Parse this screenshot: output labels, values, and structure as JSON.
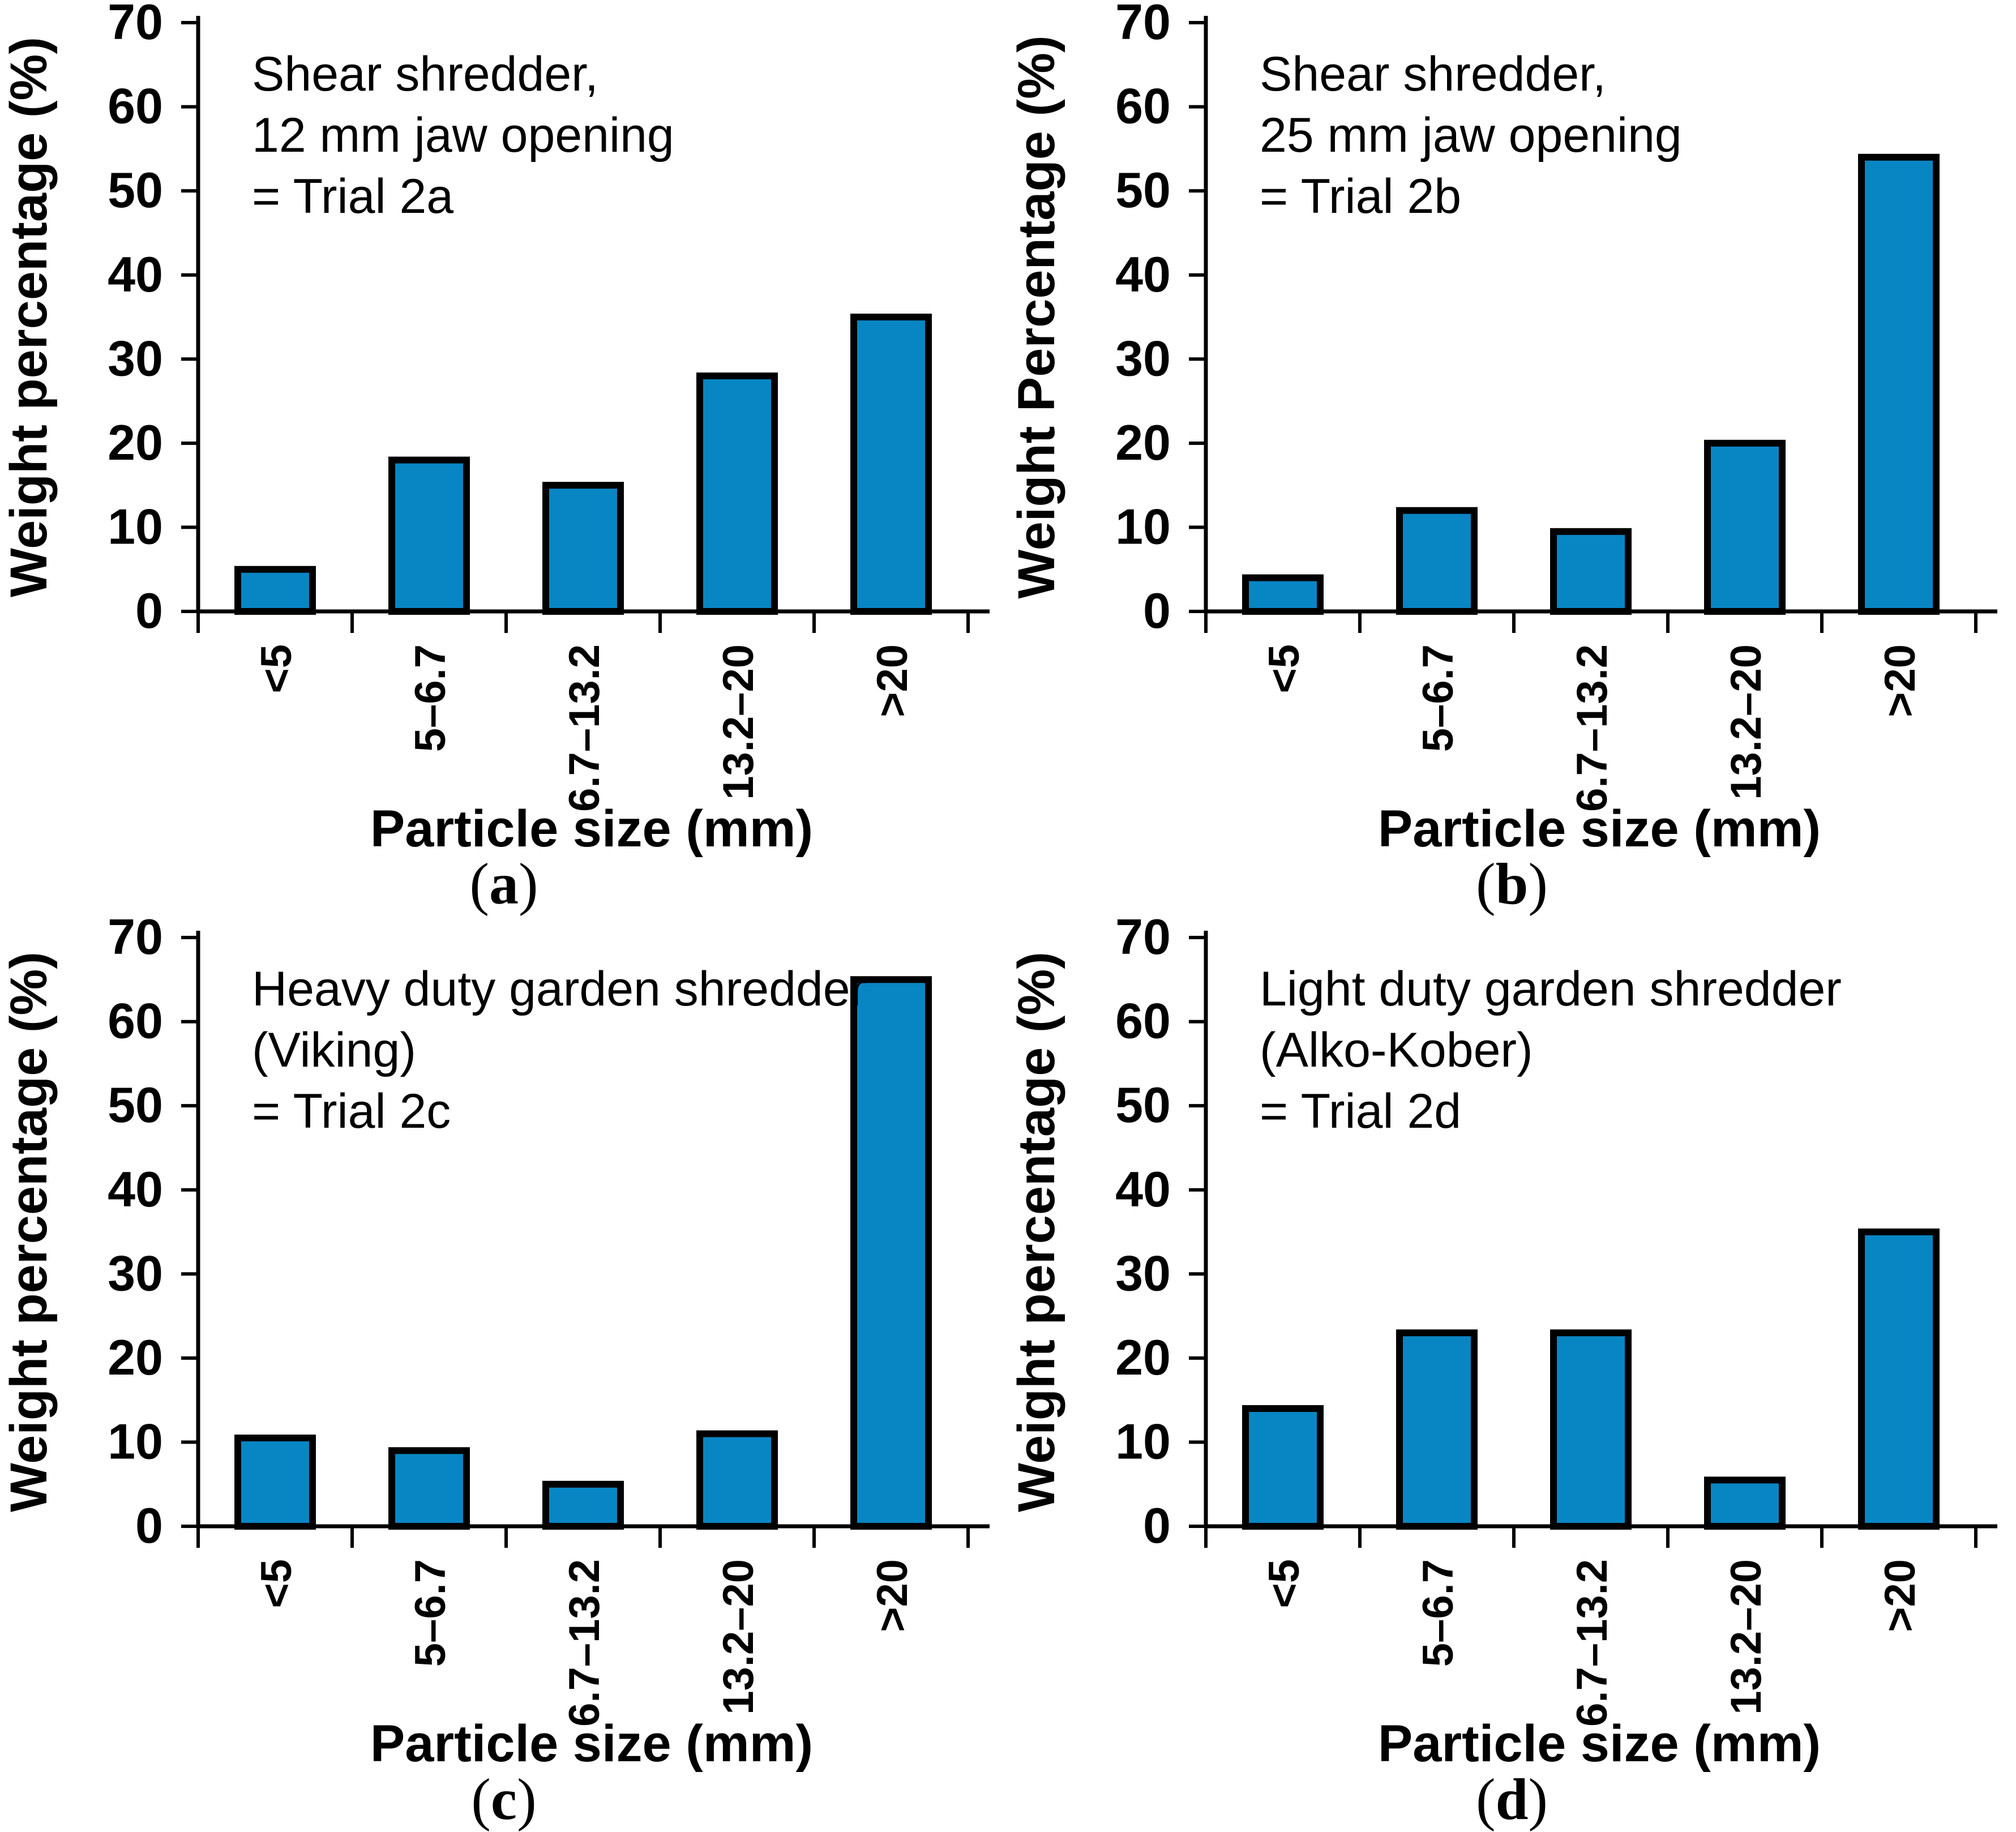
{
  "figure": {
    "colors": {
      "bar_fill": "#0886C4",
      "bar_border": "#000000",
      "axis": "#000000",
      "background": "#ffffff"
    }
  },
  "chart_data": [
    {
      "type": "bar",
      "panel": "a",
      "caption_open": "(",
      "caption_letter": "a",
      "caption_close": ")",
      "annotation_lines": [
        "Shear shredder,",
        "12 mm jaw opening",
        "= Trial 2a"
      ],
      "ylabel": "Weight percentage (%)",
      "xlabel": "Particle size (mm)",
      "categories": [
        "<5",
        "5–6.7",
        "6.7–13.2",
        "13.2–20",
        ">20"
      ],
      "values": [
        5,
        18,
        15,
        28,
        35
      ],
      "yticks": [
        0,
        10,
        20,
        30,
        40,
        50,
        60,
        70
      ],
      "ylim": [
        0,
        70
      ],
      "grid": false,
      "legend": false,
      "bar_color": "#0886C4"
    },
    {
      "type": "bar",
      "panel": "b",
      "caption_open": "(",
      "caption_letter": "b",
      "caption_close": ")",
      "annotation_lines": [
        "Shear shredder,",
        "25 mm jaw opening",
        "= Trial 2b"
      ],
      "ylabel": "Weight Percentage (%)",
      "xlabel": "Particle size (mm)",
      "categories": [
        "<5",
        "5–6.7",
        "6.7–13.2",
        "13.2–20",
        ">20"
      ],
      "values": [
        4,
        12,
        9.5,
        20,
        54
      ],
      "yticks": [
        0,
        10,
        20,
        30,
        40,
        50,
        60,
        70
      ],
      "ylim": [
        0,
        70
      ],
      "grid": false,
      "legend": false,
      "bar_color": "#0886C4"
    },
    {
      "type": "bar",
      "panel": "c",
      "caption_open": "(",
      "caption_letter": "c",
      "caption_close": ")",
      "annotation_lines": [
        "Heavy duty garden shredder",
        "(Viking)",
        "= Trial 2c"
      ],
      "ylabel": "Weight percentage (%)",
      "xlabel": "Particle size (mm)",
      "categories": [
        "<5",
        "5–6.7",
        "6.7–13.2",
        "13.2–20",
        ">20"
      ],
      "values": [
        10.5,
        9,
        5,
        11,
        65
      ],
      "yticks": [
        0,
        10,
        20,
        30,
        40,
        50,
        60,
        70
      ],
      "ylim": [
        0,
        70
      ],
      "grid": false,
      "legend": false,
      "bar_color": "#0886C4"
    },
    {
      "type": "bar",
      "panel": "d",
      "caption_open": "(",
      "caption_letter": "d",
      "caption_close": ")",
      "annotation_lines": [
        "Light duty garden shredder",
        "(Alko-Kober)",
        "= Trial 2d"
      ],
      "ylabel": "Weight percentage (%)",
      "xlabel": "Particle size (mm)",
      "categories": [
        "<5",
        "5–6.7",
        "6.7–13.2",
        "13.2–20",
        ">20"
      ],
      "values": [
        14,
        23,
        23,
        5.5,
        35
      ],
      "yticks": [
        0,
        10,
        20,
        30,
        40,
        50,
        60,
        70
      ],
      "ylim": [
        0,
        70
      ],
      "grid": false,
      "legend": false,
      "bar_color": "#0886C4"
    }
  ]
}
